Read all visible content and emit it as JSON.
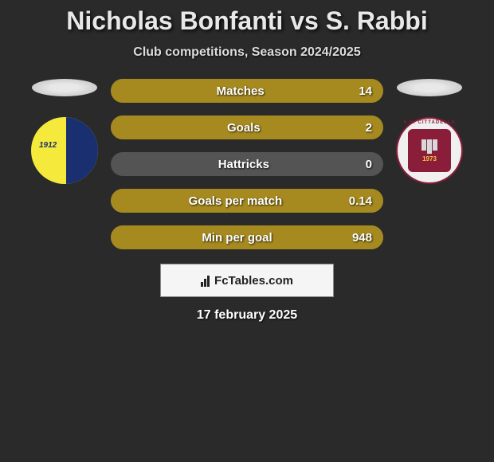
{
  "title": "Nicholas Bonfanti vs S. Rabbi",
  "subtitle": "Club competitions, Season 2024/2025",
  "date": "17 february 2025",
  "footer_label": "FcTables.com",
  "colors": {
    "filled": "#a68a1f",
    "empty": "#545454",
    "text": "#ffffff",
    "background": "#2a2a2a"
  },
  "badge_left": {
    "bg_color": "#f5ea3c",
    "accent_color": "#1a2f6f",
    "text": "1912"
  },
  "badge_right": {
    "bg_color": "#f0f0f0",
    "accent_color": "#8a1e3a",
    "year": "1973",
    "arc_text": "A.S. CITTADELLA"
  },
  "stats": [
    {
      "label": "Matches",
      "value": "14",
      "fill_pct": 100
    },
    {
      "label": "Goals",
      "value": "2",
      "fill_pct": 100
    },
    {
      "label": "Hattricks",
      "value": "0",
      "fill_pct": 0
    },
    {
      "label": "Goals per match",
      "value": "0.14",
      "fill_pct": 100
    },
    {
      "label": "Min per goal",
      "value": "948",
      "fill_pct": 100
    }
  ]
}
